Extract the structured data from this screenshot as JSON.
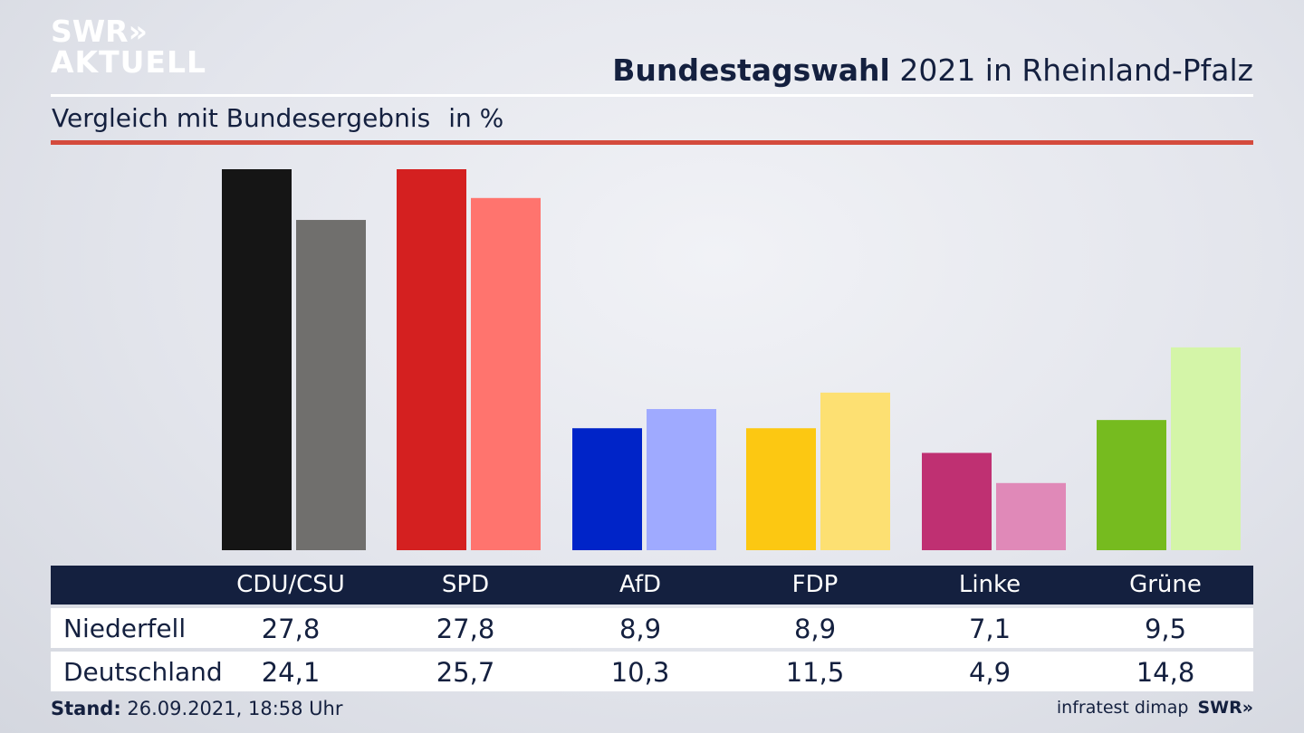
{
  "logo": {
    "line1": "SWR»",
    "line2": "AKTUELL"
  },
  "title": {
    "bold": "Bundestagswahl",
    "rest": " 2021 in Rheinland-Pfalz"
  },
  "subtitle": {
    "text": "Vergleich mit Bundesergebnis",
    "unit": "in %"
  },
  "footer": {
    "stand_label": "Stand:",
    "stand_value": " 26.09.2021, 18:58 Uhr",
    "source": "infratest dimap",
    "brand": "SWR»"
  },
  "table": {
    "headers": [
      "CDU/CSU",
      "SPD",
      "AfD",
      "FDP",
      "Linke",
      "Grüne"
    ],
    "rows": [
      {
        "label": "Niederfell",
        "values": [
          "27,8",
          "27,8",
          "8,9",
          "8,9",
          "7,1",
          "9,5"
        ]
      },
      {
        "label": "Deutschland",
        "values": [
          "24,1",
          "25,7",
          "10,3",
          "11,5",
          "4,9",
          "14,8"
        ]
      }
    ]
  },
  "chart_data": {
    "type": "bar",
    "categories": [
      "CDU/CSU",
      "SPD",
      "AfD",
      "FDP",
      "Linke",
      "Grüne"
    ],
    "series": [
      {
        "name": "Niederfell",
        "values": [
          27.8,
          27.8,
          8.9,
          8.9,
          7.1,
          9.5
        ],
        "colors": [
          "#151515",
          "#d42020",
          "#0024c8",
          "#fcc812",
          "#bf3072",
          "#76bb1f"
        ]
      },
      {
        "name": "Deutschland",
        "values": [
          24.1,
          25.7,
          10.3,
          11.5,
          4.9,
          14.8
        ],
        "colors": [
          "#706f6d",
          "#ff746e",
          "#9faaff",
          "#fde072",
          "#e089b8",
          "#d4f5a8"
        ]
      }
    ],
    "ylim": [
      0,
      27.8
    ],
    "grid": false,
    "title": "Bundestagswahl 2021 in Rheinland-Pfalz"
  }
}
